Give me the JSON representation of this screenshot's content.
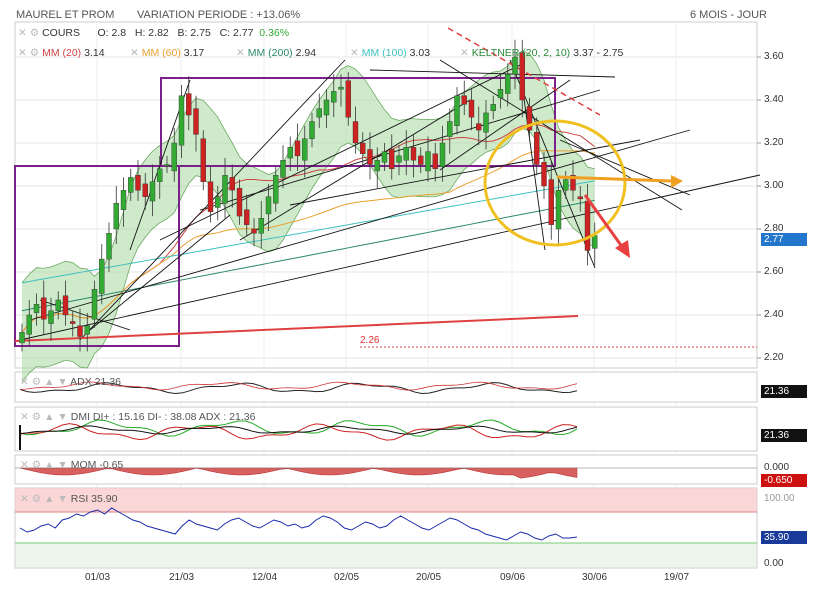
{
  "header": {
    "symbol": "MAUREL ET PROM",
    "variation": "VARIATION PERIODE : +13.06%",
    "period": "6 MOIS - JOUR"
  },
  "legend_row1": {
    "cours_label": "COURS",
    "open": "O: 2.8",
    "high": "H: 2.82",
    "low": "B: 2.75",
    "close": "C: 2.77",
    "change": "0.36%"
  },
  "legend_row2": {
    "mm20": "MM (20)",
    "mm20_val": "3.14",
    "mm60": "MM (60)",
    "mm60_val": "3.17",
    "mm200": "MM (200)",
    "mm200_val": "2.94",
    "mm100": "MM (100)",
    "mm100_val": "3.03",
    "keltner": "KELTNER (20, 2, 10)",
    "keltner_val": "3.37 - 2.75"
  },
  "price_axis": [
    "3.60",
    "3.40",
    "3.20",
    "3.00",
    "2.80",
    "2.60",
    "2.40",
    "2.20"
  ],
  "last_price_tag": "2.77",
  "support_label": "2.26",
  "indicators": {
    "adx_label": "ADX",
    "adx_val": "21.36",
    "adx_tag": "21.36",
    "dmi_label": "DMI DI+ : 15.16 DI- : 38.08 ADX : 21.36",
    "dmi_tag": "21.36",
    "mom_label": "MOM",
    "mom_val": "-0.65",
    "mom_axis": "0.000",
    "mom_tag": "-0.650",
    "rsi_label": "RSI",
    "rsi_val": "35.90",
    "rsi_axis_top": "100.00",
    "rsi_axis_bottom": "0.00",
    "rsi_tag": "35.90"
  },
  "date_axis": [
    "01/03",
    "21/03",
    "12/04",
    "02/05",
    "20/05",
    "09/06",
    "30/06",
    "19/07"
  ],
  "colors": {
    "up": "#33aa33",
    "down": "#cc2222",
    "keltner_fill": "#a8d8a0",
    "mm20": "#cc4444",
    "mm60": "#e8a030",
    "mm200": "#2a8a6a",
    "mm100": "#40c0c0",
    "box": "#7b1f8a",
    "circle": "#f0c020",
    "arrow_orange": "#f0a020",
    "arrow_red": "#e84040"
  },
  "chart_data": {
    "type": "candlestick",
    "ylim": [
      2.2,
      3.7
    ],
    "closes": [
      2.32,
      2.4,
      2.45,
      2.38,
      2.42,
      2.47,
      2.4,
      2.36,
      2.3,
      2.35,
      2.52,
      2.66,
      2.78,
      2.92,
      2.98,
      3.04,
      2.98,
      2.95,
      3.02,
      3.08,
      3.1,
      3.2,
      3.42,
      3.33,
      3.24,
      3.02,
      2.88,
      2.95,
      3.05,
      2.98,
      2.86,
      2.82,
      2.78,
      2.85,
      2.95,
      3.05,
      3.12,
      3.18,
      3.14,
      3.22,
      3.3,
      3.36,
      3.4,
      3.44,
      3.46,
      3.32,
      3.2,
      3.15,
      3.1,
      3.12,
      3.16,
      3.08,
      3.14,
      3.18,
      3.12,
      3.1,
      3.16,
      3.08,
      3.2,
      3.3,
      3.42,
      3.38,
      3.32,
      3.26,
      3.34,
      3.38,
      3.45,
      3.52,
      3.6,
      3.4,
      3.26,
      3.1,
      3.0,
      2.82,
      2.98,
      3.03,
      2.98,
      2.94,
      2.7,
      2.77
    ]
  }
}
